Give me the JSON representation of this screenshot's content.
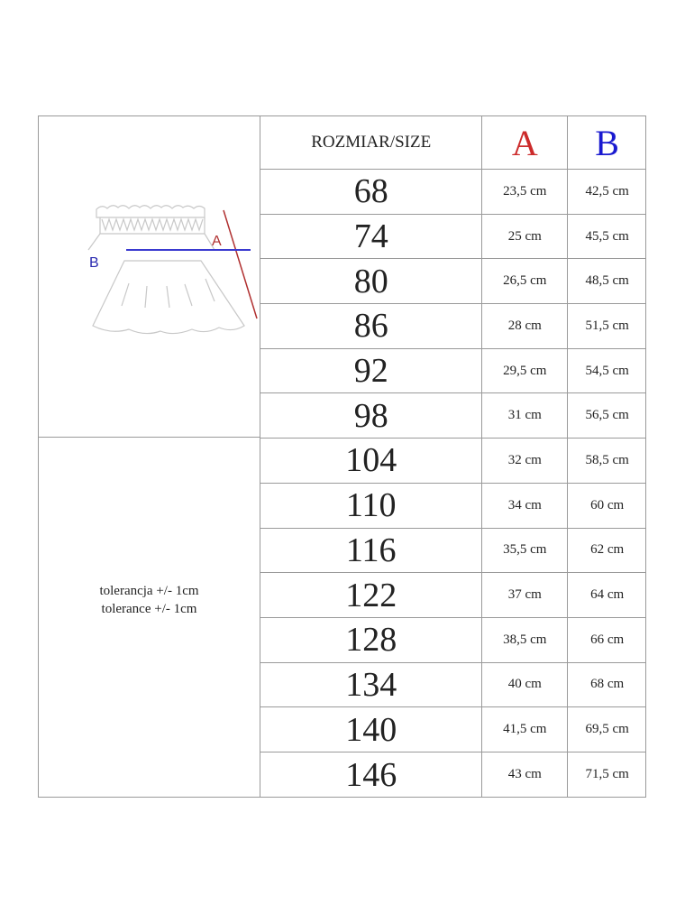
{
  "diagram": {
    "label_a": "A",
    "label_b": "B",
    "color_a": "#b03030",
    "color_b": "#3a3ad0"
  },
  "tolerance": [
    "tolerancja +/- 1cm",
    "tolerance +/- 1cm"
  ],
  "header": {
    "size": "ROZMIAR/SIZE",
    "a": "A",
    "b": "B",
    "color_a": "#cc2b2b",
    "color_b": "#1a1ad0"
  },
  "rows": [
    {
      "size": "68",
      "a": "23,5 cm",
      "b": "42,5 cm"
    },
    {
      "size": "74",
      "a": "25 cm",
      "b": "45,5 cm"
    },
    {
      "size": "80",
      "a": "26,5 cm",
      "b": "48,5 cm"
    },
    {
      "size": "86",
      "a": "28 cm",
      "b": "51,5 cm"
    },
    {
      "size": "92",
      "a": "29,5 cm",
      "b": "54,5 cm"
    },
    {
      "size": "98",
      "a": "31 cm",
      "b": "56,5 cm"
    },
    {
      "size": "104",
      "a": "32 cm",
      "b": "58,5 cm"
    },
    {
      "size": "110",
      "a": "34 cm",
      "b": "60 cm"
    },
    {
      "size": "116",
      "a": "35,5 cm",
      "b": "62 cm"
    },
    {
      "size": "122",
      "a": "37 cm",
      "b": "64 cm"
    },
    {
      "size": "128",
      "a": "38,5 cm",
      "b": "66 cm"
    },
    {
      "size": "134",
      "a": "40 cm",
      "b": "68 cm"
    },
    {
      "size": "140",
      "a": "41,5 cm",
      "b": "69,5 cm"
    },
    {
      "size": "146",
      "a": "43 cm",
      "b": "71,5 cm"
    }
  ]
}
